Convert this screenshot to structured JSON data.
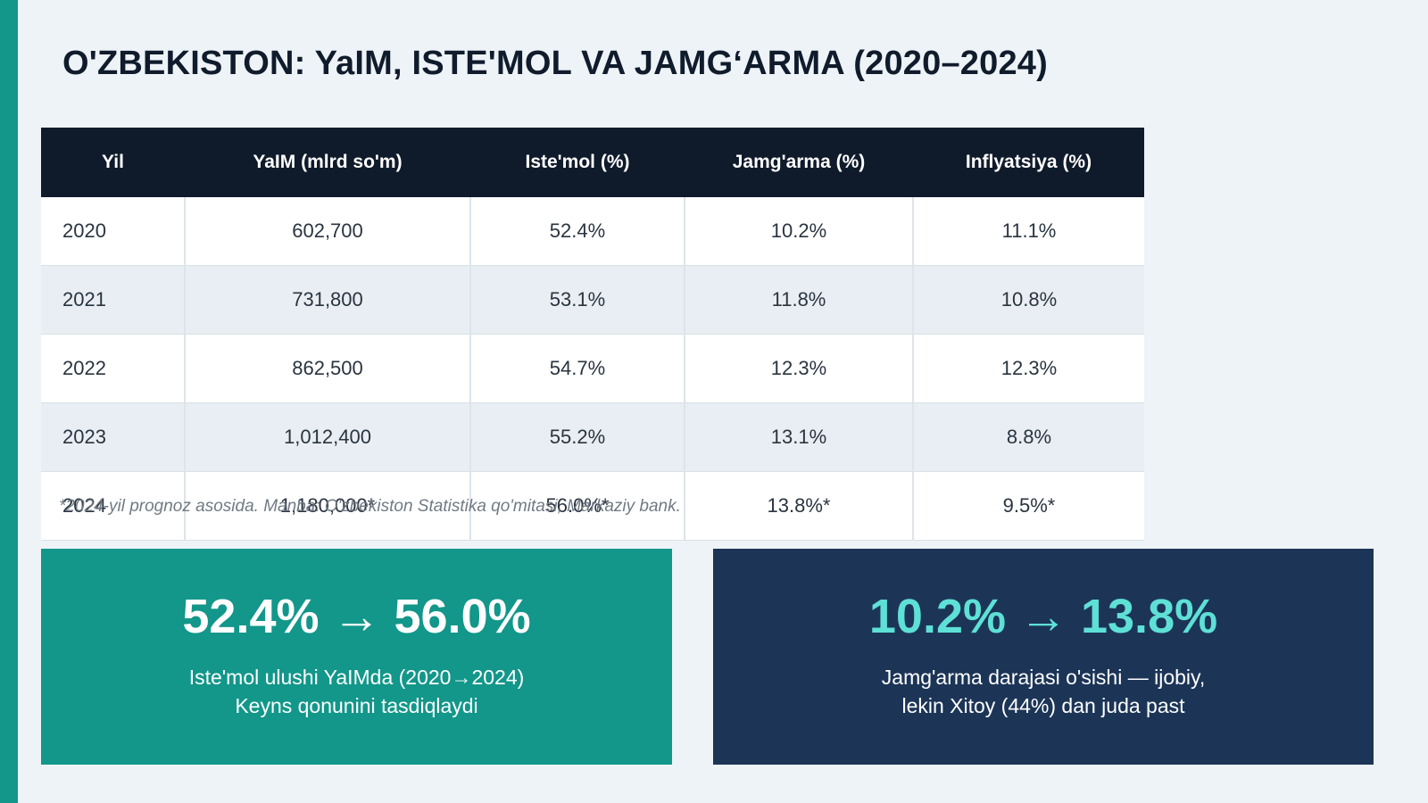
{
  "title": "O'ZBEKISTON: YaIM, ISTE'MOL VA JAMG‘ARMA (2020–2024)",
  "table": {
    "headers": [
      "Yil",
      "YaIM (mlrd so'm)",
      "Iste'mol (%)",
      "Jamg'arma (%)",
      "Inflyatsiya (%)"
    ],
    "rows": [
      [
        "2020",
        "602,700",
        "52.4%",
        "10.2%",
        "11.1%"
      ],
      [
        "2021",
        "731,800",
        "53.1%",
        "11.8%",
        "10.8%"
      ],
      [
        "2022",
        "862,500",
        "54.7%",
        "12.3%",
        "12.3%"
      ],
      [
        "2023",
        "1,012,400",
        "55.2%",
        "13.1%",
        "8.8%"
      ],
      [
        "2024",
        "1,180,000*",
        "56.0%*",
        "13.8%*",
        "9.5%*"
      ]
    ]
  },
  "footnote": "*2024-yil prognoz asosida. Manba: O'zbekiston Statistika qo'mitasi, Markaziy bank.",
  "cards": [
    {
      "big": "52.4% → 56.0%",
      "line1": "Iste'mol ulushi YaIMda (2020→2024)",
      "line2": "Keyns qonunini tasdiqlaydi"
    },
    {
      "big": "10.2% → 13.8%",
      "line1": "Jamg'arma darajasi o'sishi — ijobiy,",
      "line2": "lekin Xitoy (44%) dan juda past"
    }
  ],
  "colors": {
    "accent": "#12978a",
    "header": "#0f1b2b",
    "navy_card": "#1c3557",
    "highlight": "#5ee0d6"
  }
}
